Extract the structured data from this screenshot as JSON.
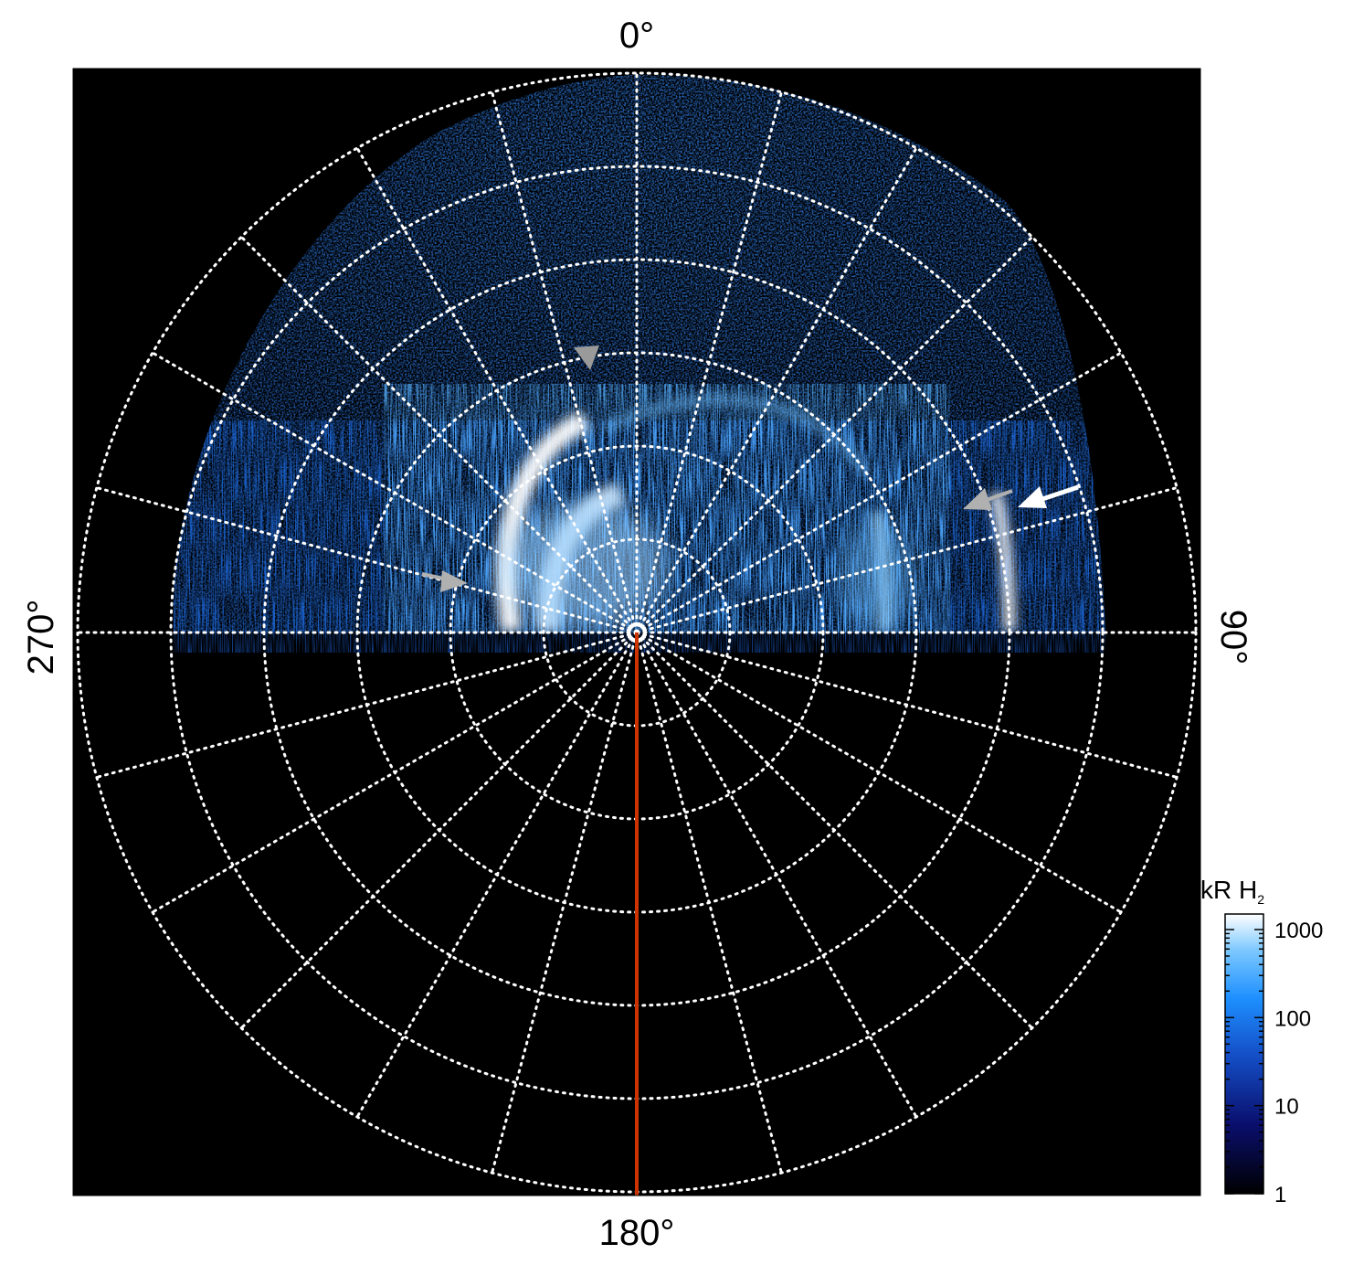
{
  "angle_labels": {
    "top": "0°",
    "right": "90°",
    "bottom": "180°",
    "left": "270°"
  },
  "colorbar": {
    "title": "kR H",
    "title_subscript": "2",
    "scale": "log",
    "ticks": [
      "1000",
      "100",
      "10",
      "1"
    ],
    "tick_values": [
      1000,
      100,
      10,
      1
    ],
    "range": [
      1,
      1500
    ],
    "colors": [
      "#000000",
      "#0a0f6e",
      "#1450c8",
      "#1e90ff",
      "#7cc8ff",
      "#ffffff"
    ]
  },
  "grid": {
    "line_color": "#ffffff",
    "style": "dotted",
    "rings": 6,
    "spokes": 24
  },
  "meridian_line_color": "#cc3300",
  "background_color": "#000000",
  "aurora": {
    "hemisphere_visible": "upper",
    "arrows": [
      {
        "color": "#b0b0b0",
        "label": "arrow-left"
      },
      {
        "color": "#b0b0b0",
        "label": "arrow-top"
      },
      {
        "color": "#b0b0b0",
        "label": "arrow-right-grey"
      },
      {
        "color": "#ffffff",
        "label": "arrow-right-white"
      }
    ]
  }
}
